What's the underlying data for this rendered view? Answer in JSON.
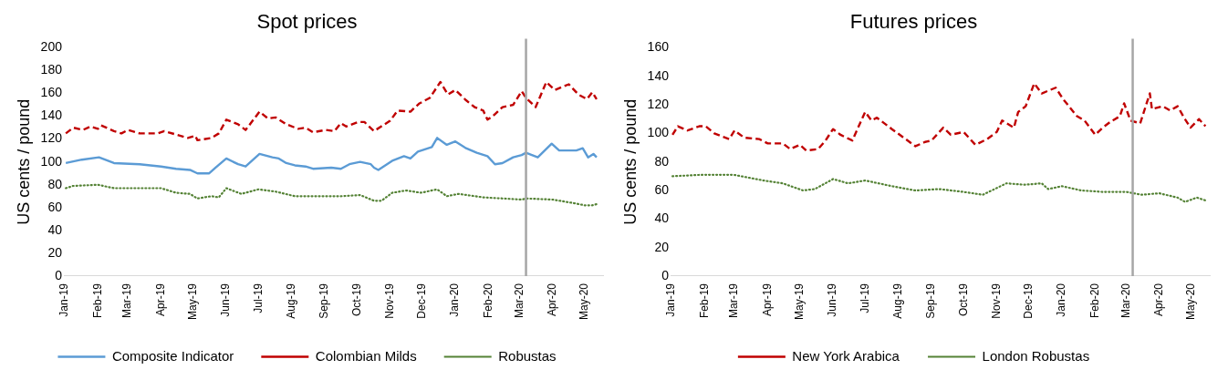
{
  "chart_data": [
    {
      "type": "line",
      "title": "Spot prices",
      "ylabel": "US cents / pound",
      "marker": "none",
      "legend": "bottom",
      "xlim": [
        "2019-01-01",
        "2020-05-18"
      ],
      "xticks": [
        {
          "value": "2019-01-01",
          "label": "Jan-19"
        },
        {
          "value": "2019-02-01",
          "label": "Feb-19"
        },
        {
          "value": "2019-03-01",
          "label": "Mar-19"
        },
        {
          "value": "2019-04-01",
          "label": "Apr-19"
        },
        {
          "value": "2019-05-01",
          "label": "May-19"
        },
        {
          "value": "2019-06-01",
          "label": "Jun-19"
        },
        {
          "value": "2019-07-01",
          "label": "Jul-19"
        },
        {
          "value": "2019-08-01",
          "label": "Aug-19"
        },
        {
          "value": "2019-09-01",
          "label": "Sep-19"
        },
        {
          "value": "2019-10-01",
          "label": "Oct-19"
        },
        {
          "value": "2019-11-01",
          "label": "Nov-19"
        },
        {
          "value": "2019-12-01",
          "label": "Dec-19"
        },
        {
          "value": "2020-01-01",
          "label": "Jan-20"
        },
        {
          "value": "2020-02-01",
          "label": "Feb-20"
        },
        {
          "value": "2020-03-01",
          "label": "Mar-20"
        },
        {
          "value": "2020-04-01",
          "label": "Apr-20"
        },
        {
          "value": "2020-05-01",
          "label": "May-20"
        }
      ],
      "ylim": [
        0,
        200
      ],
      "yticks": [
        0,
        20,
        40,
        60,
        80,
        100,
        120,
        140,
        160,
        180,
        200
      ],
      "ref_lines": [
        {
          "axis": "x",
          "value": "2020-03-07",
          "color": "#a6a6a6"
        }
      ],
      "series": [
        {
          "name": "Composite Indicator",
          "color": "#5b9bd5",
          "line_style": "solid",
          "x": [
            "2019-01-02",
            "2019-01-17",
            "2019-02-02",
            "2019-02-16",
            "2019-03-12",
            "2019-04-01",
            "2019-04-15",
            "2019-04-28",
            "2019-05-05",
            "2019-05-16",
            "2019-05-22",
            "2019-06-01",
            "2019-06-12",
            "2019-06-19",
            "2019-07-02",
            "2019-07-14",
            "2019-07-20",
            "2019-07-27",
            "2019-08-04",
            "2019-08-14",
            "2019-08-21",
            "2019-09-07",
            "2019-09-16",
            "2019-09-24",
            "2019-10-04",
            "2019-10-14",
            "2019-10-17",
            "2019-10-21",
            "2019-11-03",
            "2019-11-14",
            "2019-11-20",
            "2019-11-27",
            "2019-12-10",
            "2019-12-15",
            "2019-12-24",
            "2020-01-01",
            "2020-01-11",
            "2020-01-21",
            "2020-01-31",
            "2020-02-07",
            "2020-02-14",
            "2020-02-24",
            "2020-03-03",
            "2020-03-07",
            "2020-03-18",
            "2020-03-31",
            "2020-04-07",
            "2020-04-23",
            "2020-04-29",
            "2020-05-04",
            "2020-05-09",
            "2020-05-12"
          ],
          "values": [
            99,
            102,
            104,
            99,
            98,
            96,
            94,
            93,
            90,
            90,
            95,
            103,
            98,
            96,
            107,
            104,
            103,
            99,
            97,
            96,
            94,
            95,
            94,
            98,
            100,
            98,
            95,
            93,
            101,
            105,
            103,
            109,
            113,
            121,
            115,
            118,
            112,
            108,
            105,
            98,
            99,
            104,
            106,
            108,
            104,
            116,
            110,
            110,
            112,
            104,
            107,
            104
          ]
        },
        {
          "name": "Colombian Milds",
          "color": "#c00000",
          "line_style": "dashed",
          "x": [
            "2019-01-02",
            "2019-01-09",
            "2019-01-18",
            "2019-01-25",
            "2019-02-01",
            "2019-02-04",
            "2019-02-16",
            "2019-02-23",
            "2019-03-01",
            "2019-03-12",
            "2019-03-29",
            "2019-04-04",
            "2019-04-15",
            "2019-04-26",
            "2019-05-03",
            "2019-05-05",
            "2019-05-18",
            "2019-05-25",
            "2019-06-01",
            "2019-06-12",
            "2019-06-19",
            "2019-07-02",
            "2019-07-10",
            "2019-07-17",
            "2019-07-27",
            "2019-08-07",
            "2019-08-14",
            "2019-08-21",
            "2019-09-02",
            "2019-09-10",
            "2019-09-16",
            "2019-09-21",
            "2019-10-02",
            "2019-10-08",
            "2019-10-17",
            "2019-11-01",
            "2019-11-08",
            "2019-11-20",
            "2019-11-28",
            "2019-12-08",
            "2019-12-18",
            "2019-12-25",
            "2020-01-01",
            "2020-01-11",
            "2020-01-19",
            "2020-01-27",
            "2020-01-31",
            "2020-02-05",
            "2020-02-14",
            "2020-02-24",
            "2020-03-03",
            "2020-03-07",
            "2020-03-16",
            "2020-03-26",
            "2020-04-03",
            "2020-04-16",
            "2020-04-25",
            "2020-05-03",
            "2020-05-08",
            "2020-05-12"
          ],
          "values": [
            125,
            130,
            128,
            131,
            129,
            132,
            127,
            125,
            128,
            125,
            125,
            127,
            124,
            121,
            123,
            119,
            121,
            125,
            137,
            133,
            128,
            144,
            138,
            139,
            133,
            129,
            130,
            126,
            128,
            127,
            134,
            131,
            135,
            135,
            127,
            136,
            145,
            144,
            151,
            156,
            170,
            159,
            163,
            154,
            148,
            145,
            137,
            140,
            148,
            150,
            162,
            156,
            148,
            170,
            163,
            168,
            159,
            155,
            161,
            155
          ]
        },
        {
          "name": "Robustas",
          "color": "#548235",
          "line_style": "dotted",
          "x": [
            "2019-01-02",
            "2019-01-09",
            "2019-02-01",
            "2019-02-16",
            "2019-03-12",
            "2019-04-01",
            "2019-04-15",
            "2019-04-28",
            "2019-05-05",
            "2019-05-18",
            "2019-05-25",
            "2019-06-01",
            "2019-06-15",
            "2019-07-01",
            "2019-07-17",
            "2019-08-04",
            "2019-09-02",
            "2019-09-16",
            "2019-10-04",
            "2019-10-17",
            "2019-10-24",
            "2019-11-03",
            "2019-11-16",
            "2019-11-30",
            "2019-12-15",
            "2019-12-24",
            "2020-01-04",
            "2020-01-27",
            "2020-02-14",
            "2020-03-03",
            "2020-03-07",
            "2020-04-01",
            "2020-04-20",
            "2020-05-01",
            "2020-05-08",
            "2020-05-12"
          ],
          "values": [
            77,
            79,
            80,
            77,
            77,
            77,
            73,
            72,
            68,
            70,
            69,
            77,
            72,
            76,
            74,
            70,
            70,
            70,
            71,
            66,
            66,
            73,
            75,
            73,
            76,
            70,
            72,
            69,
            68,
            67,
            68,
            67,
            64,
            62,
            62,
            63
          ]
        }
      ]
    },
    {
      "type": "line",
      "title": "Futures prices",
      "ylabel": "US cents / pound",
      "marker": "none",
      "legend": "bottom",
      "xlim": [
        "2019-01-01",
        "2020-05-18"
      ],
      "xticks": [
        {
          "value": "2019-01-01",
          "label": "Jan-19"
        },
        {
          "value": "2019-02-01",
          "label": "Feb-19"
        },
        {
          "value": "2019-03-01",
          "label": "Mar-19"
        },
        {
          "value": "2019-04-01",
          "label": "Apr-19"
        },
        {
          "value": "2019-05-01",
          "label": "May-19"
        },
        {
          "value": "2019-06-01",
          "label": "Jun-19"
        },
        {
          "value": "2019-07-01",
          "label": "Jul-19"
        },
        {
          "value": "2019-08-01",
          "label": "Aug-19"
        },
        {
          "value": "2019-09-01",
          "label": "Sep-19"
        },
        {
          "value": "2019-10-01",
          "label": "Oct-19"
        },
        {
          "value": "2019-11-01",
          "label": "Nov-19"
        },
        {
          "value": "2019-12-01",
          "label": "Dec-19"
        },
        {
          "value": "2020-01-01",
          "label": "Jan-20"
        },
        {
          "value": "2020-02-01",
          "label": "Feb-20"
        },
        {
          "value": "2020-03-01",
          "label": "Mar-20"
        },
        {
          "value": "2020-04-01",
          "label": "Apr-20"
        },
        {
          "value": "2020-05-01",
          "label": "May-20"
        }
      ],
      "ylim": [
        0,
        160
      ],
      "yticks": [
        0,
        20,
        40,
        60,
        80,
        100,
        120,
        140,
        160
      ],
      "ref_lines": [
        {
          "axis": "x",
          "value": "2020-03-07",
          "color": "#a6a6a6"
        }
      ],
      "series": [
        {
          "name": "New York Arabica",
          "color": "#c00000",
          "line_style": "dashed",
          "x": [
            "2019-01-02",
            "2019-01-07",
            "2019-01-16",
            "2019-01-27",
            "2019-02-02",
            "2019-02-10",
            "2019-02-24",
            "2019-03-01",
            "2019-03-10",
            "2019-03-24",
            "2019-04-01",
            "2019-04-15",
            "2019-04-22",
            "2019-05-01",
            "2019-05-07",
            "2019-05-18",
            "2019-05-25",
            "2019-06-01",
            "2019-06-08",
            "2019-06-19",
            "2019-07-01",
            "2019-07-07",
            "2019-07-12",
            "2019-07-26",
            "2019-08-06",
            "2019-08-17",
            "2019-08-26",
            "2019-09-01",
            "2019-09-12",
            "2019-09-19",
            "2019-10-01",
            "2019-10-12",
            "2019-10-23",
            "2019-11-01",
            "2019-11-06",
            "2019-11-17",
            "2019-11-21",
            "2019-11-28",
            "2019-12-06",
            "2019-12-13",
            "2019-12-26",
            "2020-01-02",
            "2020-01-15",
            "2020-01-22",
            "2020-02-01",
            "2020-02-08",
            "2020-02-15",
            "2020-02-24",
            "2020-02-28",
            "2020-03-05",
            "2020-03-14",
            "2020-03-20",
            "2020-03-23",
            "2020-03-25",
            "2020-04-04",
            "2020-04-11",
            "2020-04-18",
            "2020-04-24",
            "2020-04-30",
            "2020-05-08",
            "2020-05-14"
          ],
          "values": [
            99,
            105,
            102,
            105,
            105,
            100,
            96,
            102,
            97,
            96,
            93,
            93,
            89,
            92,
            88,
            89,
            95,
            103,
            99,
            95,
            115,
            109,
            111,
            103,
            97,
            91,
            94,
            95,
            104,
            99,
            101,
            92,
            96,
            101,
            109,
            104,
            115,
            119,
            135,
            128,
            132,
            124,
            112,
            109,
            99,
            104,
            108,
            112,
            121,
            109,
            107,
            121,
            128,
            117,
            119,
            116,
            119,
            111,
            104,
            110,
            105
          ]
        },
        {
          "name": "London Robustas",
          "color": "#548235",
          "line_style": "dotted",
          "x": [
            "2019-01-02",
            "2019-01-30",
            "2019-02-28",
            "2019-03-28",
            "2019-04-15",
            "2019-05-04",
            "2019-05-15",
            "2019-06-01",
            "2019-06-15",
            "2019-07-01",
            "2019-07-26",
            "2019-08-17",
            "2019-09-08",
            "2019-10-01",
            "2019-10-19",
            "2019-11-10",
            "2019-11-27",
            "2019-12-13",
            "2019-12-19",
            "2020-01-01",
            "2020-01-19",
            "2020-02-08",
            "2020-03-01",
            "2020-03-15",
            "2020-04-01",
            "2020-04-18",
            "2020-04-25",
            "2020-05-06",
            "2020-05-14"
          ],
          "values": [
            70,
            71,
            71,
            67,
            65,
            60,
            61,
            68,
            65,
            67,
            63,
            60,
            61,
            59,
            57,
            65,
            64,
            65,
            61,
            63,
            60,
            59,
            59,
            57,
            58,
            55,
            52,
            55,
            53
          ]
        }
      ]
    }
  ]
}
